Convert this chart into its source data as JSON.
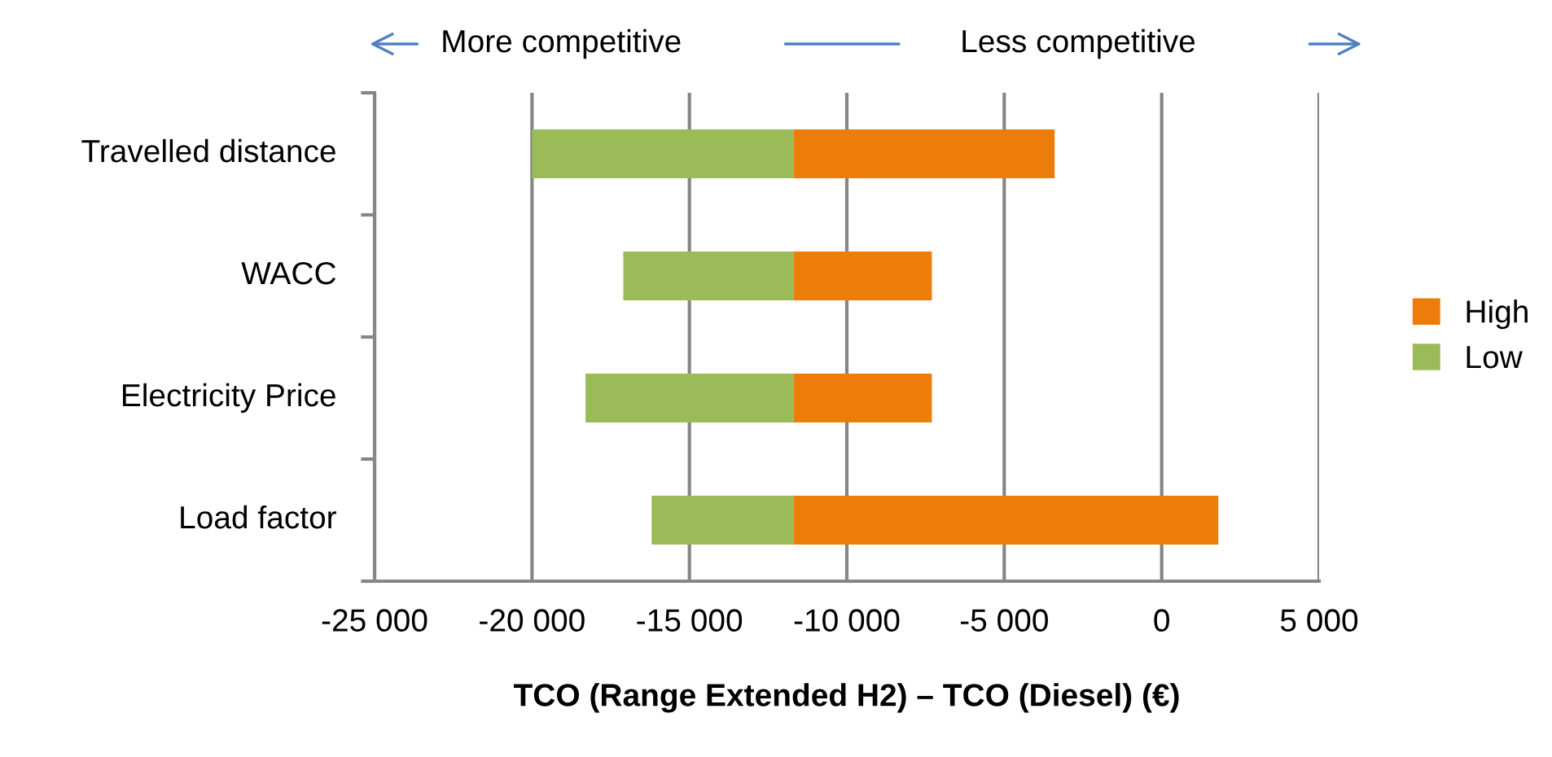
{
  "chart_data": {
    "type": "bar",
    "orientation": "horizontal",
    "xlabel": "TCO (Range Extended H2) – TCO (Diesel) (€)",
    "categories": [
      "Travelled distance",
      "WACC",
      "Electricity Price",
      "Load factor"
    ],
    "series": [
      {
        "name": "High",
        "color": "#ed7d0a",
        "base": [
          -11700,
          -11700,
          -11700,
          -11700
        ],
        "values": [
          8300,
          4400,
          4400,
          13500
        ]
      },
      {
        "name": "Low",
        "color": "#9bbb59",
        "base": [
          -20000,
          -17100,
          -18300,
          -16200
        ],
        "values": [
          8300,
          5400,
          6600,
          4500
        ]
      }
    ],
    "xlim": [
      -25000,
      5000
    ],
    "xticks": [
      {
        "value": -25000,
        "label": "-25 000"
      },
      {
        "value": -20000,
        "label": "-20 000"
      },
      {
        "value": -15000,
        "label": "-15 000"
      },
      {
        "value": -10000,
        "label": "-10 000"
      },
      {
        "value": -5000,
        "label": "-5 000"
      },
      0,
      {
        "value": 5000,
        "label": "5 000"
      }
    ],
    "grid": "x",
    "legend": "right",
    "annotations": [
      "More competitive",
      "Less competitive"
    ]
  }
}
